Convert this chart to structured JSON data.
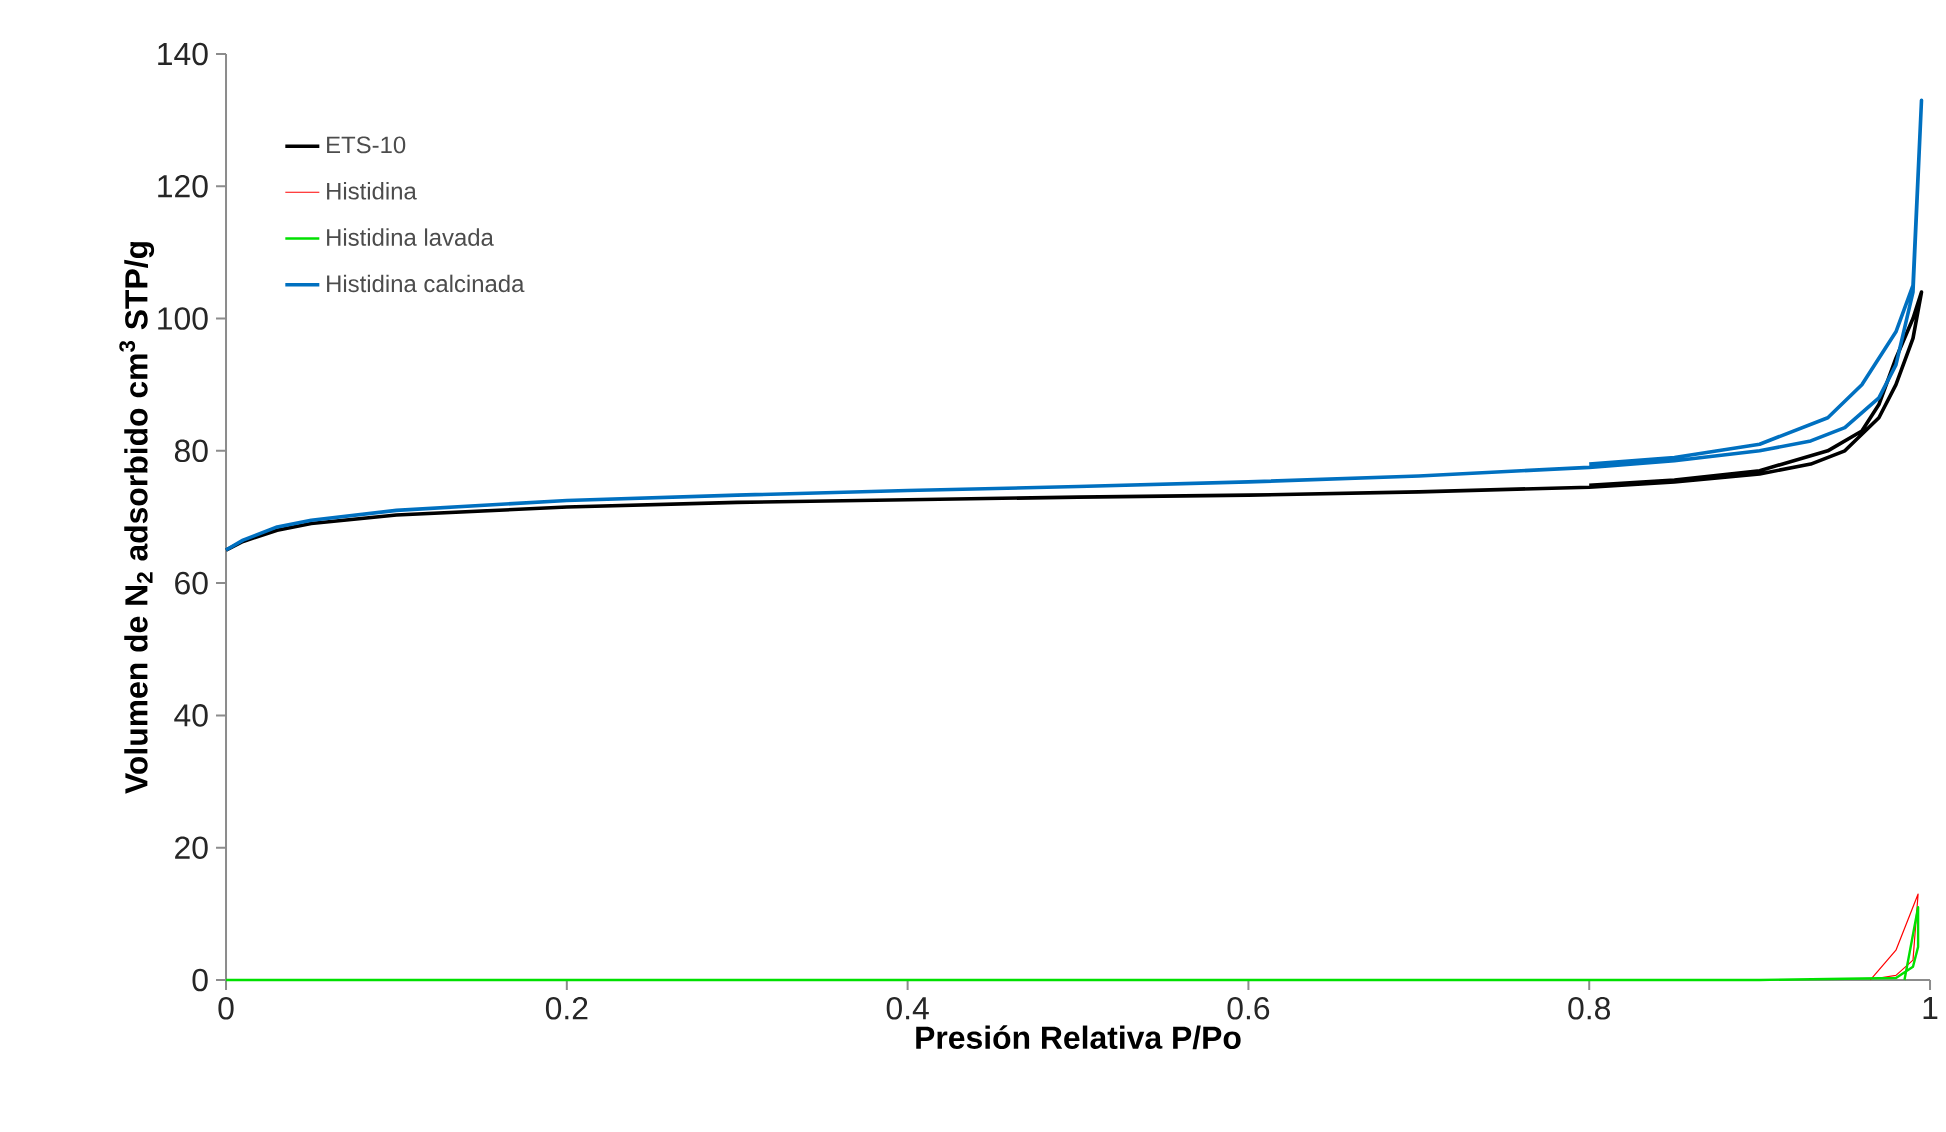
{
  "chart_data": {
    "type": "line",
    "xlabel": "Presión Relativa P/Po",
    "ylabel": "Volumen de N$_{2}$ adsorbido cm$^{3}$ STP/g",
    "xlim": [
      0,
      1
    ],
    "ylim": [
      0,
      140
    ],
    "xticks": [
      0,
      0.2,
      0.4,
      0.6,
      0.8,
      1
    ],
    "yticks": [
      0,
      20,
      40,
      60,
      80,
      100,
      120,
      140
    ],
    "legend": "top left",
    "series": [
      {
        "name": "ETS-10",
        "color": "#000000",
        "x": [
          0,
          0.01,
          0.03,
          0.05,
          0.1,
          0.2,
          0.3,
          0.4,
          0.5,
          0.6,
          0.7,
          0.8,
          0.85,
          0.9,
          0.93,
          0.95,
          0.97,
          0.98,
          0.99,
          0.995,
          0.99,
          0.98,
          0.97,
          0.96,
          0.94,
          0.9,
          0.85,
          0.8
        ],
        "values": [
          65,
          66.3,
          68,
          69,
          70.3,
          71.5,
          72.2,
          72.6,
          73,
          73.3,
          73.8,
          74.5,
          75.3,
          76.5,
          78,
          80,
          85,
          90,
          97,
          104,
          100,
          94,
          87,
          83,
          80,
          77,
          75.6,
          74.8
        ]
      },
      {
        "name": "Histidina",
        "color": "#ff0000",
        "x": [
          0.97,
          0.98,
          0.99,
          0.993,
          0.98,
          0.965
        ],
        "values": [
          0.3,
          0.7,
          3,
          13,
          4.5,
          0
        ]
      },
      {
        "name": "Histidina lavada",
        "color": "#00e000",
        "x": [
          0,
          0.5,
          0.9,
          0.98,
          0.99,
          0.993,
          0.993,
          0.985
        ],
        "values": [
          0,
          0,
          0,
          0.3,
          2,
          5,
          11,
          0
        ]
      },
      {
        "name": "Histidina calcinada",
        "color": "#0070c0",
        "x": [
          0,
          0.01,
          0.03,
          0.05,
          0.1,
          0.2,
          0.3,
          0.4,
          0.5,
          0.6,
          0.7,
          0.8,
          0.85,
          0.9,
          0.93,
          0.95,
          0.97,
          0.98,
          0.99,
          0.995,
          0.99,
          0.98,
          0.96,
          0.94,
          0.9,
          0.85,
          0.8
        ],
        "values": [
          65,
          66.5,
          68.5,
          69.5,
          71,
          72.5,
          73.3,
          74,
          74.6,
          75.3,
          76.2,
          77.5,
          78.5,
          80,
          81.5,
          83.5,
          88,
          93,
          104,
          133,
          105,
          98,
          90,
          85,
          81,
          79,
          78
        ]
      }
    ]
  }
}
